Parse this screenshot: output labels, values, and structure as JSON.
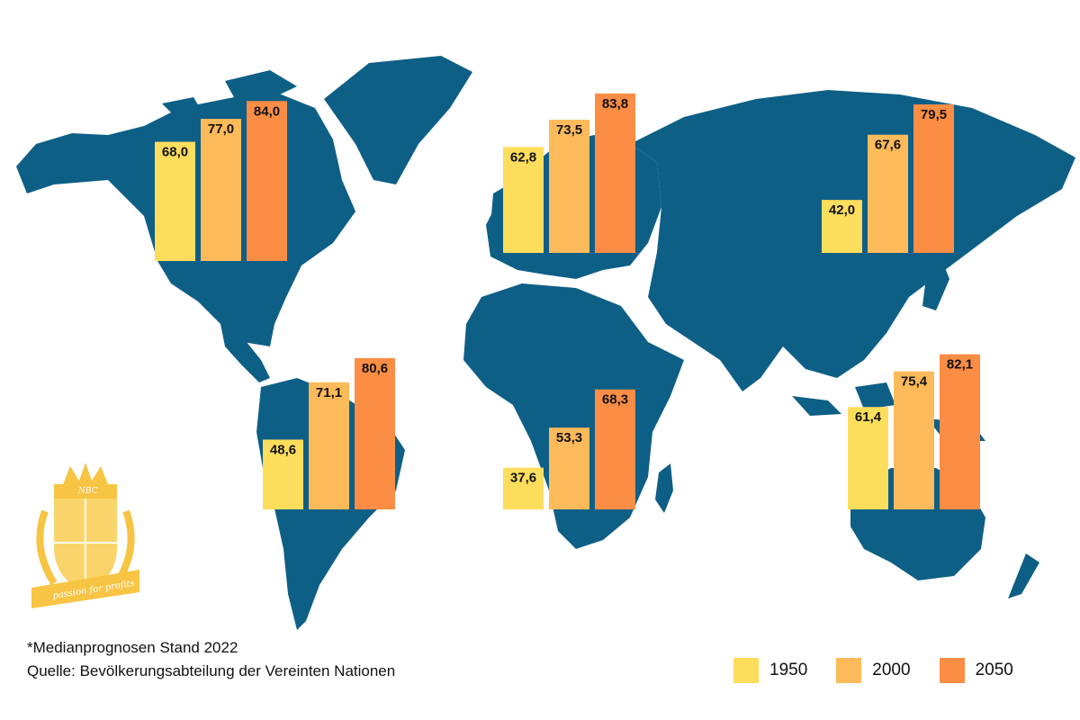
{
  "chart_data": {
    "type": "bar",
    "categories": [
      "Nordamerika",
      "Europa",
      "Asien",
      "Südamerika",
      "Afrika",
      "Ozeanien"
    ],
    "series": [
      {
        "name": "1950",
        "color": "#FDDD5C",
        "values": [
          68.0,
          62.8,
          42.0,
          48.6,
          37.6,
          61.4
        ]
      },
      {
        "name": "2000",
        "color": "#FDBA5A",
        "values": [
          77.0,
          73.5,
          67.6,
          71.1,
          53.3,
          75.4
        ]
      },
      {
        "name": "2050",
        "color": "#FC8D45",
        "values": [
          84.0,
          83.8,
          79.5,
          80.6,
          68.3,
          82.1
        ]
      }
    ],
    "data_labels": [
      [
        "68,0",
        "77,0",
        "84,0"
      ],
      [
        "62,8",
        "73,5",
        "83,8"
      ],
      [
        "42,0",
        "67,6",
        "79,5"
      ],
      [
        "48,6",
        "71,1",
        "80,6"
      ],
      [
        "37,6",
        "53,3",
        "68,3"
      ],
      [
        "61,4",
        "75,4",
        "82,1"
      ]
    ],
    "legend_position": "bottom-right",
    "background": "world-map",
    "map_color": "#0E5F86"
  },
  "footnote": {
    "line1": "*Medianprognosen Stand 2022",
    "line2": "Quelle: Bevölkerungsabteilung der Vereinten Nationen"
  },
  "legend": {
    "items": [
      {
        "label": "1950",
        "color": "#FDDD5C"
      },
      {
        "label": "2000",
        "color": "#FDBA5A"
      },
      {
        "label": "2050",
        "color": "#FC8D45"
      }
    ]
  },
  "logo": {
    "badge_text": "NBC",
    "motto": "passion for profits",
    "color": "#F7C443"
  }
}
